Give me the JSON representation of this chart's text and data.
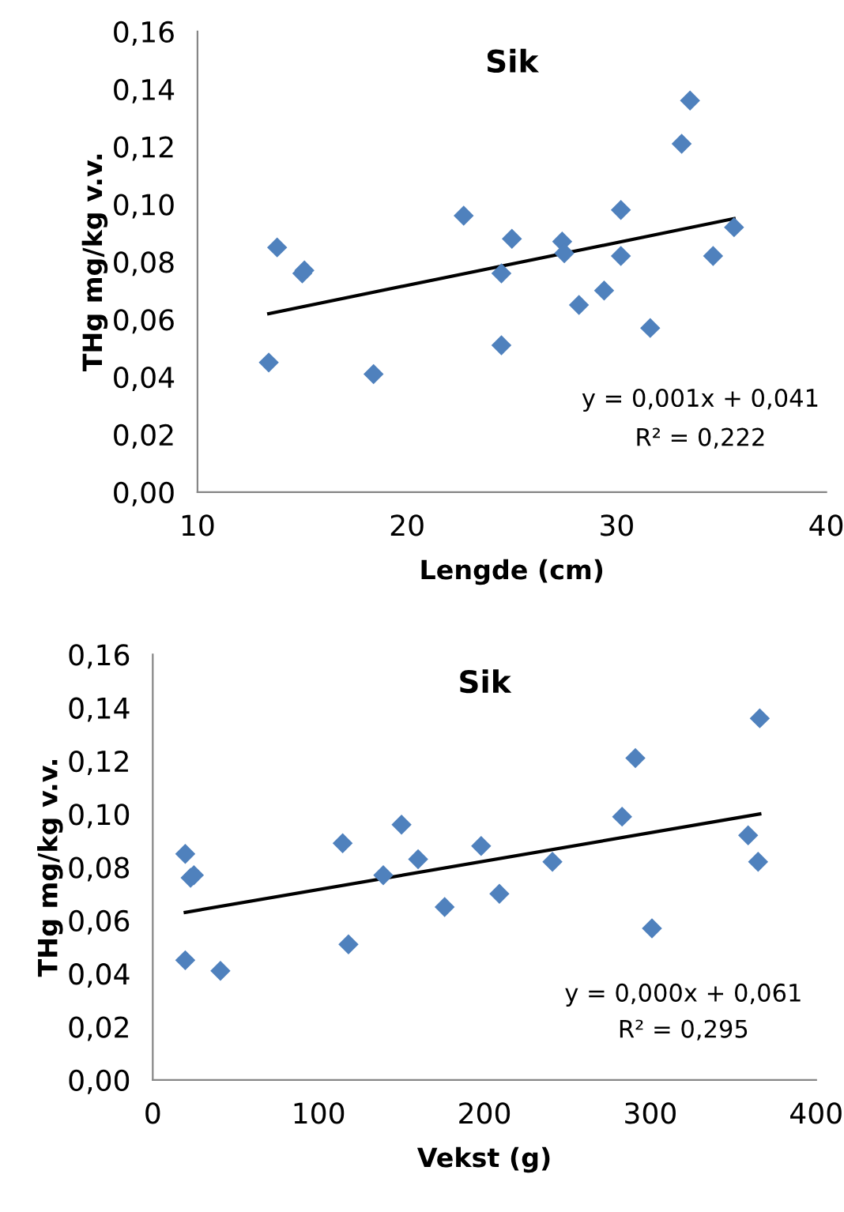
{
  "chart_data": [
    {
      "type": "scatter",
      "title": "Sik",
      "xlabel": "Lengde (cm)",
      "ylabel": "THg mg/kg v.v.",
      "marker": "diamond",
      "grid": false,
      "legend": false,
      "xlim": [
        10,
        40
      ],
      "xticks": [
        10,
        20,
        30,
        40
      ],
      "ylim": [
        0,
        0.16
      ],
      "yticks": [
        {
          "value": 0,
          "label": "0,00"
        },
        {
          "value": 0.02,
          "label": "0,02"
        },
        {
          "value": 0.04,
          "label": "0,04"
        },
        {
          "value": 0.06,
          "label": "0,06"
        },
        {
          "value": 0.08,
          "label": "0,08"
        },
        {
          "value": 0.1,
          "label": "0,10"
        },
        {
          "value": 0.12,
          "label": "0,12"
        },
        {
          "value": 0.14,
          "label": "0,14"
        },
        {
          "value": 0.16,
          "label": "0,16"
        }
      ],
      "annotations": [
        "y = 0,001x + 0,041",
        "R² = 0,222"
      ],
      "series": [
        {
          "color": "#4f81bd",
          "x": [
            13.4,
            13.8,
            15.0,
            15.1,
            18.4,
            22.7,
            24.5,
            24.5,
            25.0,
            27.4,
            27.5,
            28.2,
            29.4,
            30.2,
            30.2,
            31.6,
            33.1,
            33.5,
            34.6,
            35.6
          ],
          "values": [
            0.045,
            0.085,
            0.076,
            0.077,
            0.041,
            0.096,
            0.076,
            0.051,
            0.088,
            0.087,
            0.083,
            0.065,
            0.07,
            0.098,
            0.082,
            0.057,
            0.121,
            0.136,
            0.082,
            0.092
          ]
        },
        {
          "type": "line",
          "color": "#000000",
          "marker": "none",
          "line_style": "solid",
          "x": [
            13.4,
            35.6
          ],
          "values": [
            0.062,
            0.095
          ]
        }
      ]
    },
    {
      "type": "scatter",
      "title": "Sik",
      "xlabel": "Vekst (g)",
      "ylabel": "THg mg/kg v.v.",
      "marker": "diamond",
      "grid": false,
      "legend": false,
      "xlim": [
        0,
        400
      ],
      "xticks": [
        0,
        100,
        200,
        300,
        400
      ],
      "ylim": [
        0,
        0.16
      ],
      "yticks": [
        {
          "value": 0,
          "label": "0,00"
        },
        {
          "value": 0.02,
          "label": "0,02"
        },
        {
          "value": 0.04,
          "label": "0,04"
        },
        {
          "value": 0.06,
          "label": "0,06"
        },
        {
          "value": 0.08,
          "label": "0,08"
        },
        {
          "value": 0.1,
          "label": "0,10"
        },
        {
          "value": 0.12,
          "label": "0,12"
        },
        {
          "value": 0.14,
          "label": "0,14"
        },
        {
          "value": 0.16,
          "label": "0,16"
        }
      ],
      "annotations": [
        "y = 0,000x + 0,061",
        "R² = 0,295"
      ],
      "series": [
        {
          "color": "#4f81bd",
          "x": [
            19.6,
            19.6,
            22.8,
            24.8,
            40.8,
            114.5,
            118,
            139,
            150,
            160,
            176,
            198,
            209,
            241,
            283,
            291,
            301,
            359,
            366,
            365
          ],
          "values": [
            0.085,
            0.045,
            0.076,
            0.077,
            0.041,
            0.089,
            0.051,
            0.077,
            0.096,
            0.083,
            0.065,
            0.088,
            0.07,
            0.082,
            0.099,
            0.121,
            0.057,
            0.092,
            0.136,
            0.082
          ]
        },
        {
          "type": "line",
          "color": "#000000",
          "marker": "none",
          "line_style": "solid",
          "x": [
            19.6,
            366
          ],
          "values": [
            0.063,
            0.1
          ]
        }
      ]
    }
  ]
}
